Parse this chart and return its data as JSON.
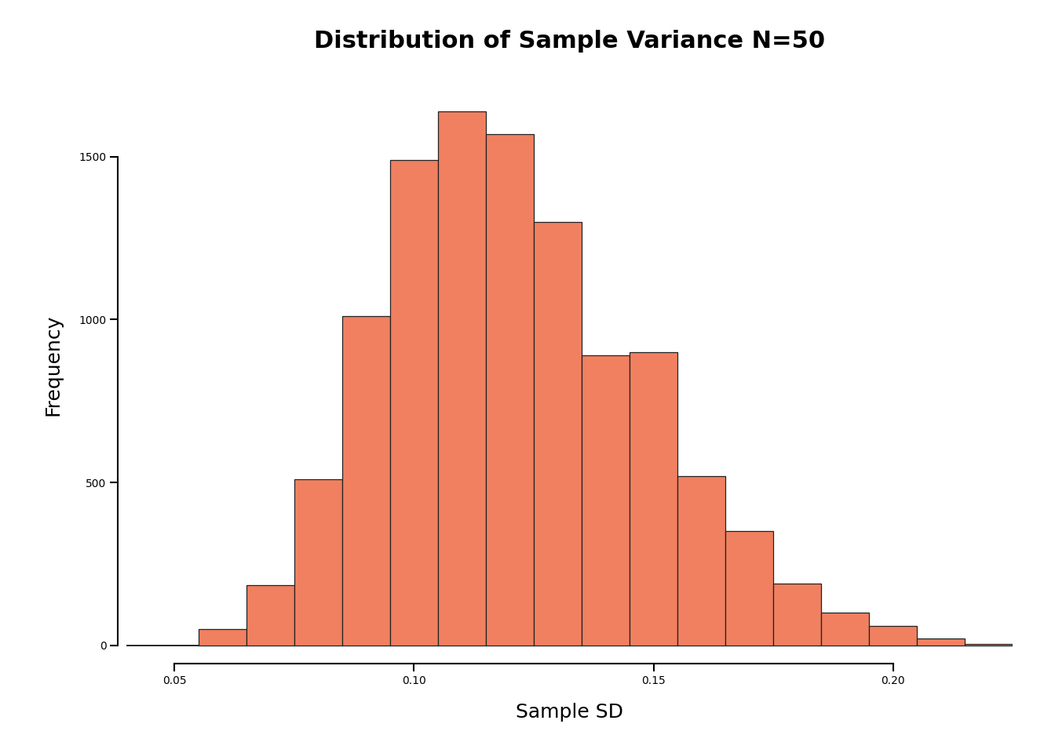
{
  "title": "Distribution of Sample Variance N=50",
  "xlabel": "Sample SD",
  "ylabel": "Frequency",
  "bar_color": "#F08060",
  "edge_color": "#222222",
  "background_color": "#ffffff",
  "xlim": [
    0.04,
    0.225
  ],
  "ylim": [
    -30,
    1750
  ],
  "yticks": [
    0,
    500,
    1000,
    1500
  ],
  "xticks": [
    0.05,
    0.1,
    0.15,
    0.2
  ],
  "bin_edges": [
    0.055,
    0.065,
    0.075,
    0.085,
    0.095,
    0.105,
    0.115,
    0.125,
    0.135,
    0.145,
    0.155,
    0.165,
    0.175,
    0.185,
    0.195,
    0.205,
    0.215,
    0.225
  ],
  "frequencies": [
    50,
    185,
    510,
    1010,
    1490,
    1640,
    1570,
    1300,
    890,
    900,
    520,
    350,
    190,
    100,
    60,
    20,
    5
  ],
  "title_fontsize": 22,
  "label_fontsize": 18,
  "tick_fontsize": 16
}
